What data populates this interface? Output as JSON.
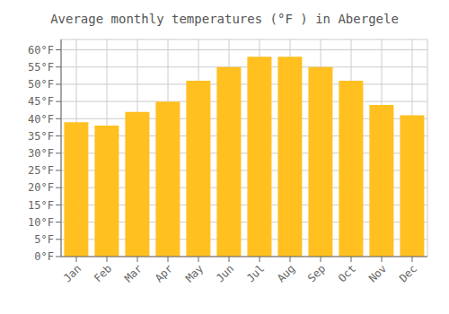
{
  "chart_data": {
    "type": "bar",
    "title": "Average monthly temperatures (°F ) in Abergele",
    "categories": [
      "Jan",
      "Feb",
      "Mar",
      "Apr",
      "May",
      "Jun",
      "Jul",
      "Aug",
      "Sep",
      "Oct",
      "Nov",
      "Dec"
    ],
    "values": [
      39,
      38,
      42,
      45,
      51,
      55,
      58,
      58,
      55,
      51,
      44,
      41
    ],
    "color": "#FFC020",
    "ylim": [
      0,
      63
    ],
    "yticks": [
      {
        "value": 0,
        "label": "0°F"
      },
      {
        "value": 5,
        "label": "5°F"
      },
      {
        "value": 10,
        "label": "10°F"
      },
      {
        "value": 15,
        "label": "15°F"
      },
      {
        "value": 20,
        "label": "20°F"
      },
      {
        "value": 25,
        "label": "25°F"
      },
      {
        "value": 30,
        "label": "30°F"
      },
      {
        "value": 35,
        "label": "35°F"
      },
      {
        "value": 40,
        "label": "40°F"
      },
      {
        "value": 45,
        "label": "45°F"
      },
      {
        "value": 50,
        "label": "50°F"
      },
      {
        "value": 55,
        "label": "55°F"
      },
      {
        "value": 60,
        "label": "60°F"
      }
    ],
    "grid": true
  }
}
